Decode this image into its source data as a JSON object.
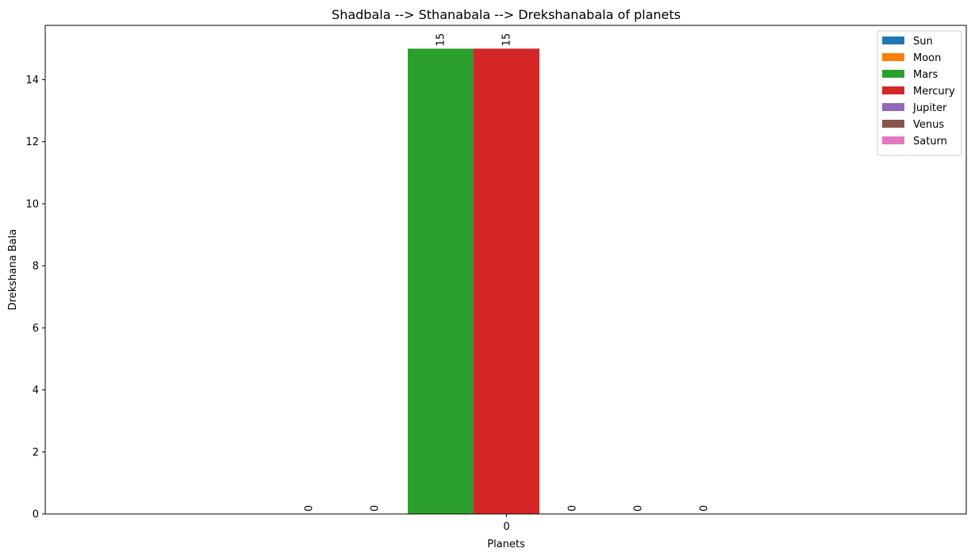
{
  "chart_data": {
    "type": "bar",
    "title": "Shadbala --> Sthanabala --> Drekshanabala of planets",
    "xlabel": "Planets",
    "ylabel": "Drekshana Bala",
    "categories": [
      "0"
    ],
    "ylim": [
      0,
      15.75
    ],
    "yticks": [
      0,
      2,
      4,
      6,
      8,
      10,
      12,
      14
    ],
    "grid": false,
    "legend_position": "top-right",
    "series": [
      {
        "name": "Sun",
        "color": "#1f77b4",
        "values": [
          0
        ],
        "label": "0"
      },
      {
        "name": "Moon",
        "color": "#ff7f0e",
        "values": [
          0
        ],
        "label": "0"
      },
      {
        "name": "Mars",
        "color": "#2ca02c",
        "values": [
          15
        ],
        "label": "15"
      },
      {
        "name": "Mercury",
        "color": "#d62728",
        "values": [
          15
        ],
        "label": "15"
      },
      {
        "name": "Jupiter",
        "color": "#9467bd",
        "values": [
          0
        ],
        "label": "0"
      },
      {
        "name": "Venus",
        "color": "#8c564b",
        "values": [
          0
        ],
        "label": "0"
      },
      {
        "name": "Saturn",
        "color": "#e377c2",
        "values": [
          0
        ],
        "label": "0"
      }
    ]
  }
}
